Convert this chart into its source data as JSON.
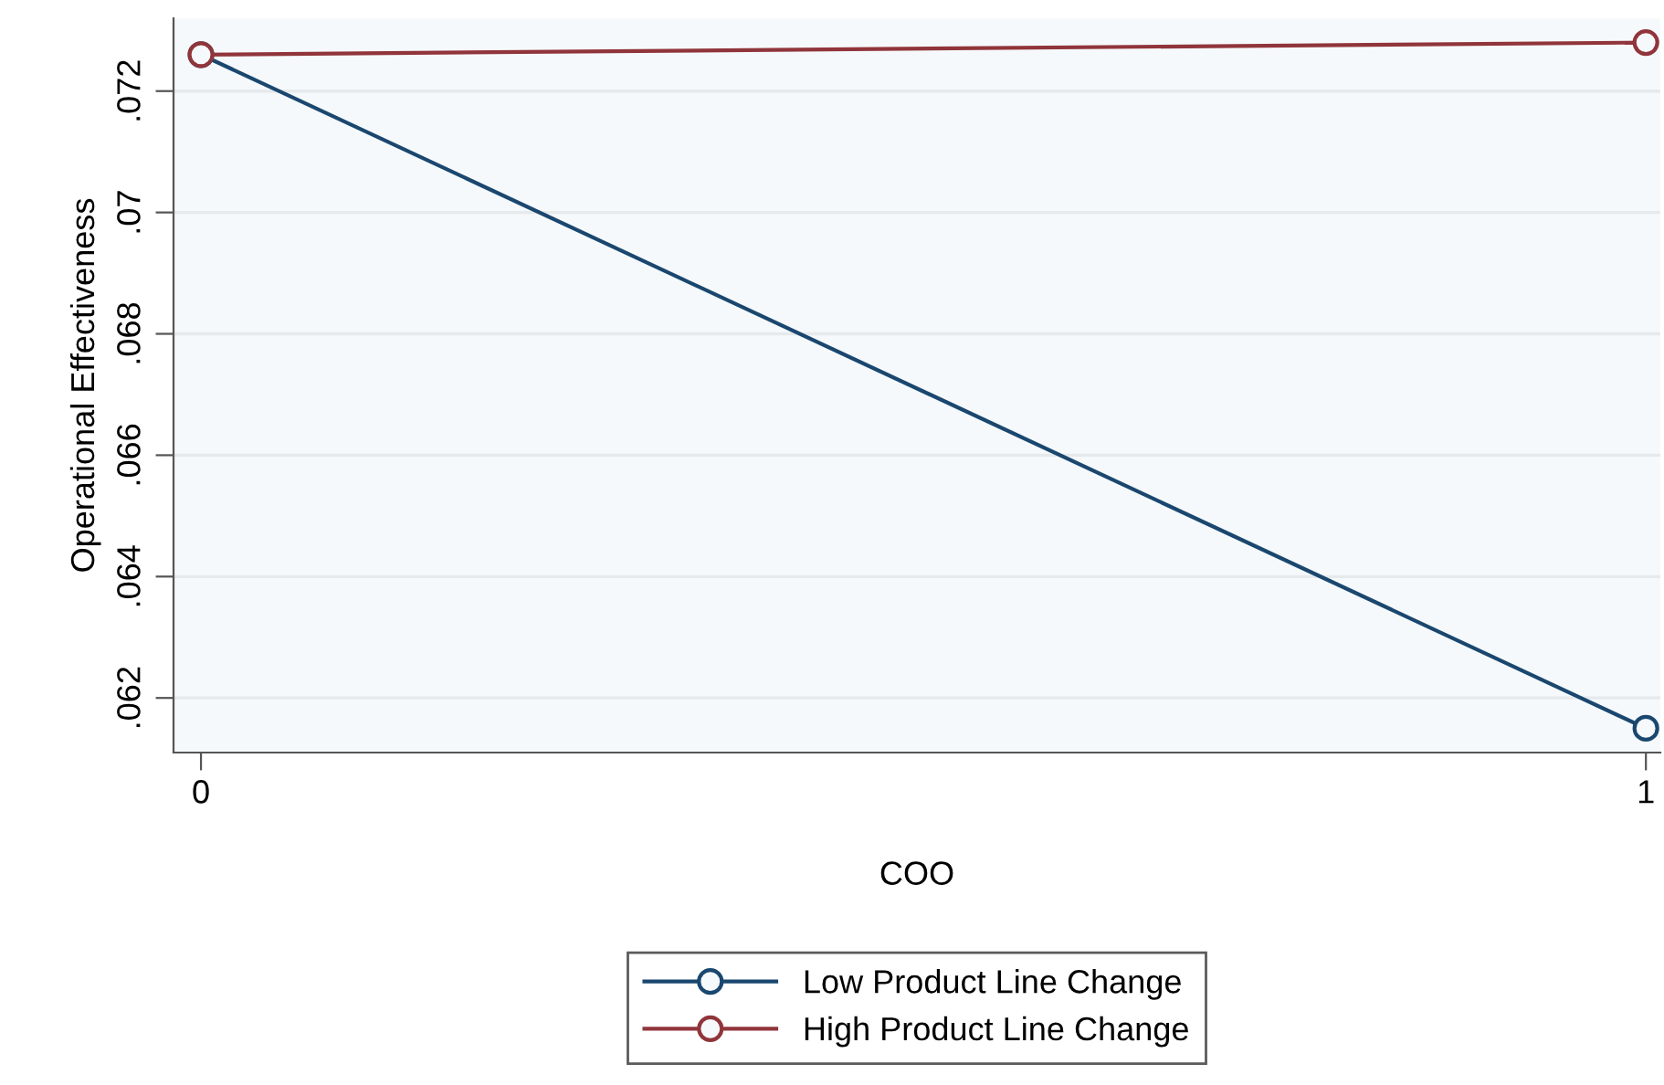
{
  "chart_data": {
    "type": "line",
    "xlabel": "COO",
    "ylabel": "Operational Effectiveness",
    "x": [
      0,
      1
    ],
    "series": [
      {
        "name": "Low Product Line Change",
        "color": "#1a476f",
        "values": [
          0.0726,
          0.0615
        ]
      },
      {
        "name": "High Product Line Change",
        "color": "#90353b",
        "values": [
          0.0726,
          0.0728
        ]
      }
    ],
    "xlim": [
      -0.019,
      1.01
    ],
    "xticks": [
      0,
      1
    ],
    "ylim": [
      0.0611,
      0.0732
    ],
    "yticks": [
      {
        "value": 0.062,
        "label": ".062"
      },
      {
        "value": 0.064,
        "label": ".064"
      },
      {
        "value": 0.066,
        "label": ".066"
      },
      {
        "value": 0.068,
        "label": ".068"
      },
      {
        "value": 0.07,
        "label": ".07"
      },
      {
        "value": 0.072,
        "label": ".072"
      }
    ],
    "grid": "y",
    "legend": "bottom",
    "marker": "circle",
    "line_style": "solid"
  }
}
